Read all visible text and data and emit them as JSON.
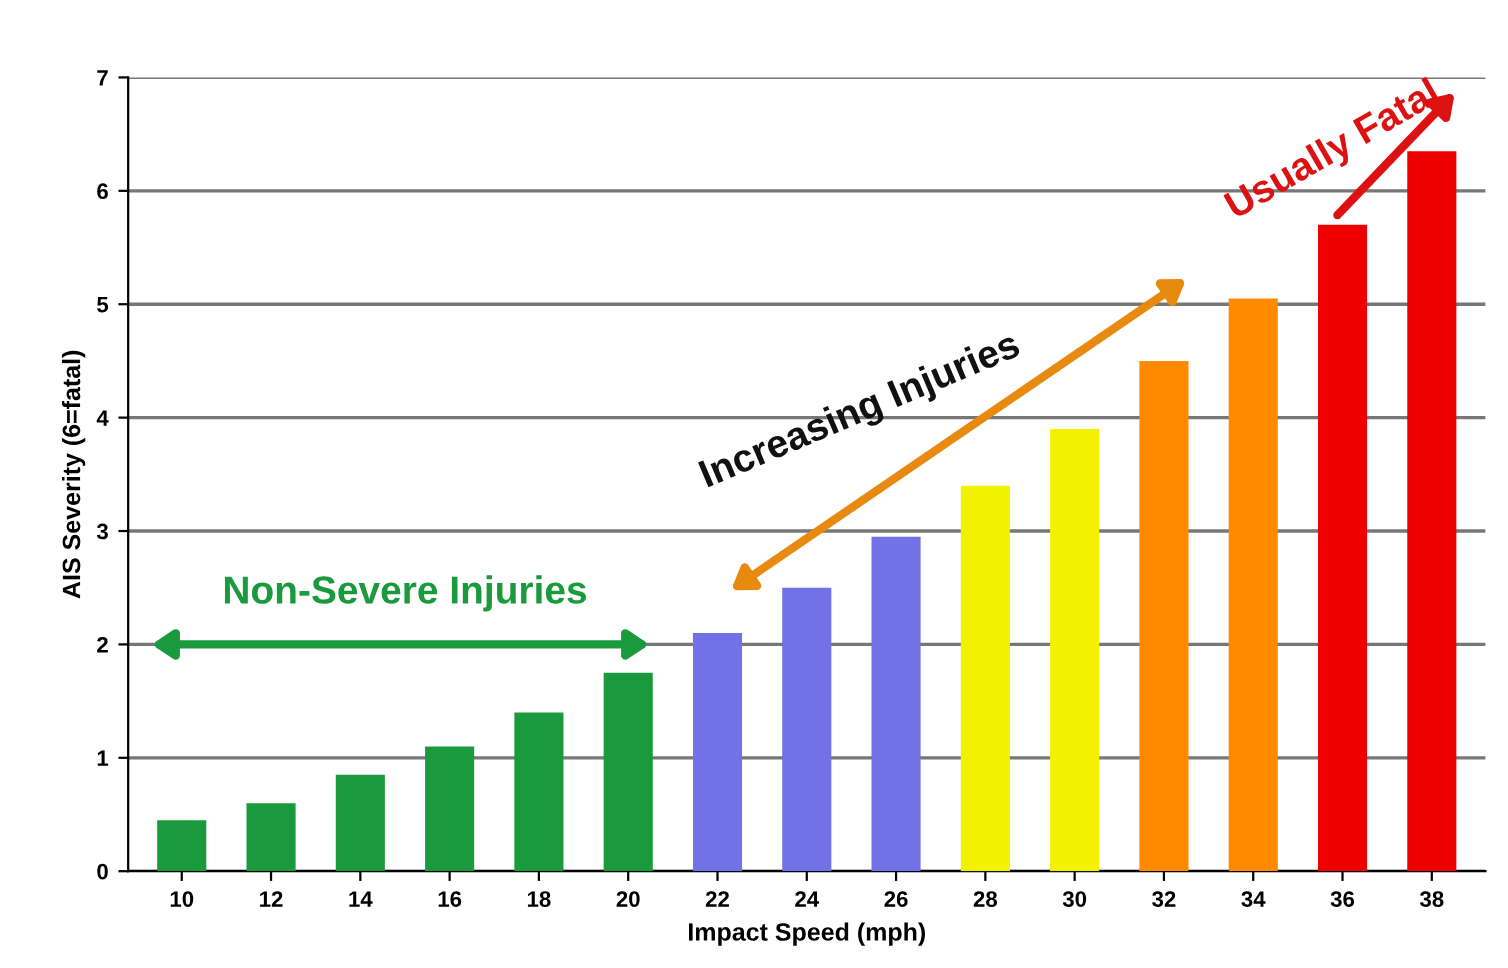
{
  "chart_data": {
    "type": "bar",
    "xlabel": "Impact Speed (mph)",
    "ylabel": "AIS Severity (6=fatal)",
    "categories": [
      "10",
      "12",
      "14",
      "16",
      "18",
      "20",
      "22",
      "24",
      "26",
      "28",
      "30",
      "32",
      "34",
      "36",
      "38"
    ],
    "values": [
      0.45,
      0.6,
      0.85,
      1.1,
      1.4,
      1.75,
      2.1,
      2.5,
      2.95,
      3.4,
      3.9,
      4.5,
      5.05,
      5.7,
      6.35
    ],
    "colors": [
      "#1a9a3c",
      "#1a9a3c",
      "#1a9a3c",
      "#1a9a3c",
      "#1a9a3c",
      "#1a9a3c",
      "#7272e6",
      "#7272e6",
      "#7272e6",
      "#f2f200",
      "#f2f200",
      "#ff8a00",
      "#ff8a00",
      "#ee0000",
      "#ee0000"
    ],
    "ylim": [
      0,
      7
    ],
    "yticks": [
      0,
      1,
      2,
      3,
      4,
      5,
      6,
      7
    ],
    "grid": "y",
    "annotations": [
      "Non-Severe Injuries",
      "Increasing Injuries",
      "Usually Fatal"
    ]
  }
}
